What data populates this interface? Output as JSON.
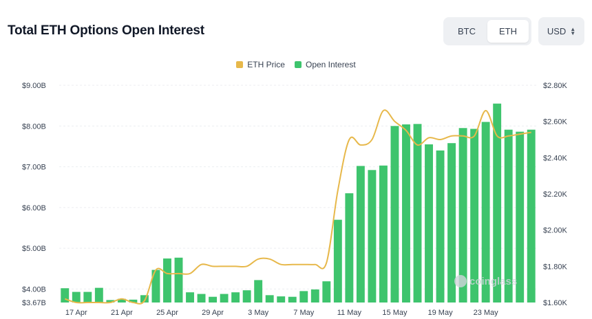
{
  "header": {
    "title": "Total ETH Options Open Interest"
  },
  "asset_toggle": {
    "options": [
      "BTC",
      "ETH"
    ],
    "selected": "ETH"
  },
  "currency": {
    "label": "USD"
  },
  "legend": [
    {
      "label": "ETH Price",
      "color": "#e7b84a"
    },
    {
      "label": "Open Interest",
      "color": "#3ec46d"
    }
  ],
  "watermark": "coinglass",
  "chart_data": {
    "type": "bar",
    "title": "Total ETH Options Open Interest",
    "x_tick_labels": [
      "17 Apr",
      "21 Apr",
      "25 Apr",
      "29 Apr",
      "3 May",
      "7 May",
      "11 May",
      "15 May",
      "19 May",
      "23 May"
    ],
    "y_left": {
      "ticks": [
        "$3.67B",
        "$4.00B",
        "$5.00B",
        "$6.00B",
        "$7.00B",
        "$8.00B",
        "$9.00B"
      ],
      "range": [
        3.67,
        9.0
      ],
      "unit": "B USD"
    },
    "y_right": {
      "ticks": [
        "$1.60K",
        "$1.80K",
        "$2.00K",
        "$2.20K",
        "$2.40K",
        "$2.60K",
        "$2.80K"
      ],
      "range": [
        1.6,
        2.8
      ],
      "unit": "K USD"
    },
    "series": [
      {
        "name": "Open Interest",
        "axis": "left",
        "type": "bar",
        "values": [
          4.02,
          3.93,
          3.93,
          4.03,
          3.73,
          3.76,
          3.74,
          3.85,
          4.47,
          4.75,
          4.77,
          3.92,
          3.88,
          3.81,
          3.88,
          3.92,
          3.97,
          4.22,
          3.85,
          3.82,
          3.81,
          3.95,
          3.99,
          4.19,
          5.7,
          6.35,
          7.02,
          6.92,
          7.03,
          8.0,
          8.04,
          8.05,
          7.55,
          7.4,
          7.58,
          7.95,
          7.93,
          8.1,
          8.55,
          7.91,
          7.86,
          7.91
        ]
      },
      {
        "name": "ETH Price",
        "axis": "right",
        "type": "line",
        "values": [
          1.62,
          1.6,
          1.6,
          1.6,
          1.6,
          1.62,
          1.6,
          1.61,
          1.78,
          1.76,
          1.76,
          1.76,
          1.81,
          1.8,
          1.8,
          1.8,
          1.8,
          1.84,
          1.84,
          1.81,
          1.81,
          1.81,
          1.81,
          1.82,
          2.22,
          2.5,
          2.47,
          2.5,
          2.66,
          2.6,
          2.55,
          2.47,
          2.51,
          2.5,
          2.52,
          2.52,
          2.52,
          2.66,
          2.52,
          2.52,
          2.53,
          2.54
        ]
      }
    ],
    "grid": true,
    "legend_position": "top-center"
  }
}
